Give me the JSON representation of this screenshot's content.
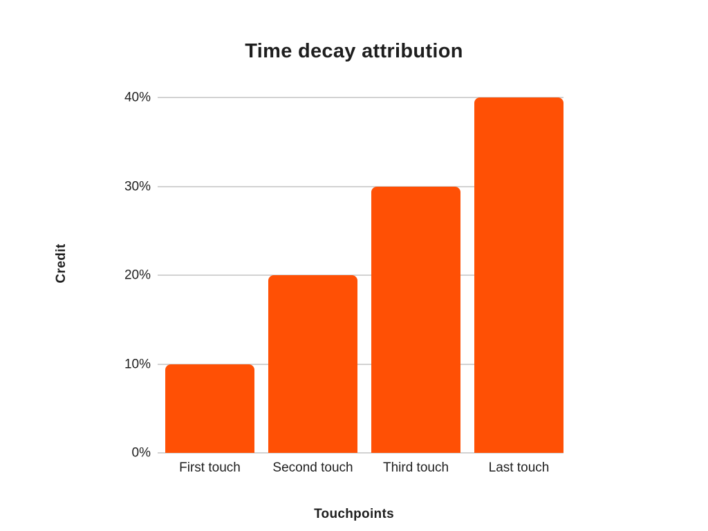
{
  "chart_data": {
    "type": "bar",
    "title": "Time decay attribution",
    "xlabel": "Touchpoints",
    "ylabel": "Credit",
    "categories": [
      "First touch",
      "Second touch",
      "Third touch",
      "Last touch"
    ],
    "values": [
      10,
      20,
      30,
      40
    ],
    "unit": "%",
    "ylim": [
      0,
      40
    ],
    "ytick_values": [
      0,
      10,
      20,
      30,
      40
    ],
    "ytick_labels": [
      "0%",
      "10%",
      "20%",
      "30%",
      "40%"
    ],
    "grid": "horizontal",
    "legend": "none",
    "colors": {
      "bar": "#FF5005",
      "gridline": "#D2D2D2",
      "text": "#1E1E1E",
      "background": "#FFFFFF"
    }
  }
}
